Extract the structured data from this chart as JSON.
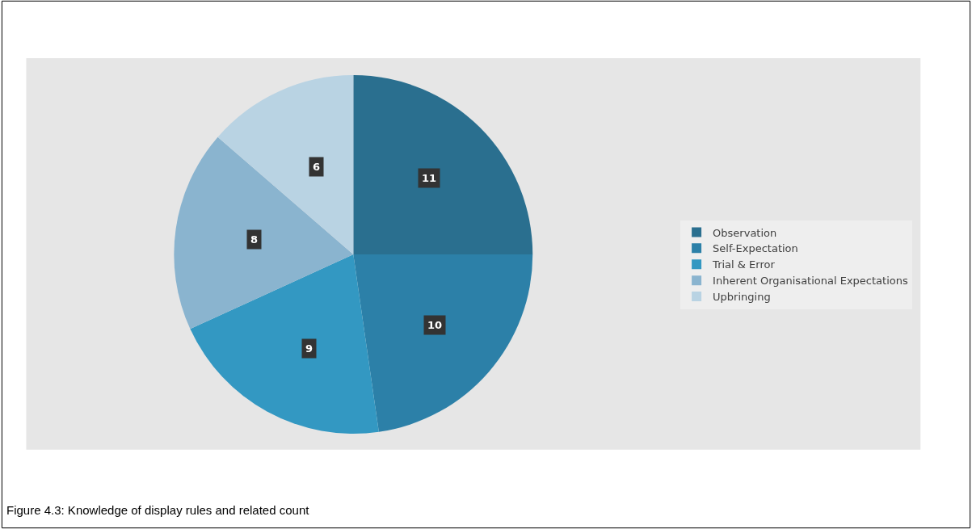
{
  "chart_data": {
    "type": "pie",
    "categories": [
      "Observation",
      "Self-Expectation",
      "Trial & Error",
      "Inherent Organisational Expectations",
      "Upbringing"
    ],
    "values": [
      11,
      10,
      9,
      8,
      6
    ],
    "colors": [
      "#2a6f8f",
      "#2c80a8",
      "#3398c2",
      "#8ab4cf",
      "#b9d3e3"
    ],
    "data_labels": true,
    "legend": "right",
    "annotations": [
      "Figure 4.3: Knowledge of display rules and related count"
    ]
  }
}
